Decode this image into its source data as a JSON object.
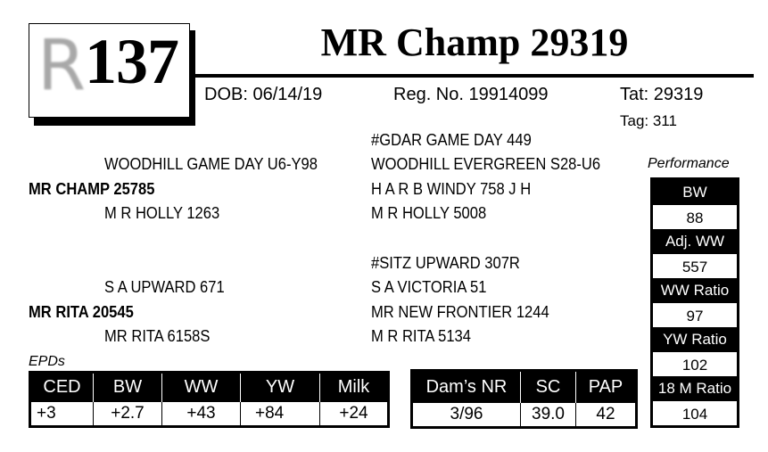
{
  "lot": {
    "logo_letter": "R",
    "number": "137"
  },
  "title": "MR Champ 29319",
  "info": {
    "dob": "DOB: 06/14/19",
    "reg": "Reg. No. 19914099",
    "tat": "Tat: 29319",
    "tag": "Tag: 311"
  },
  "pedigree": {
    "sire": "MR CHAMP 25785",
    "sire_sire": "WOODHILL GAME DAY U6-Y98",
    "sire_dam": "M R HOLLY 1263",
    "sss": "#GDAR GAME DAY 449",
    "ssd": "WOODHILL EVERGREEN S28-U6",
    "sds": "H A R B WINDY 758 J H",
    "sdd": "M R HOLLY 5008",
    "dam": "MR RITA 20545",
    "dam_sire": "S A UPWARD 671",
    "dam_dam": "MR RITA 6158S",
    "dss": "#SITZ UPWARD 307R",
    "dsd": "S A VICTORIA 51",
    "dds": "MR NEW FRONTIER 1244",
    "ddd": "M R RITA 5134"
  },
  "performance": {
    "label": "Performance",
    "items": [
      {
        "label": "BW",
        "value": "88"
      },
      {
        "label": "Adj. WW",
        "value": "557"
      },
      {
        "label": "WW Ratio",
        "value": "97"
      },
      {
        "label": "YW Ratio",
        "value": "102"
      },
      {
        "label": "18 M Ratio",
        "value": "104"
      }
    ]
  },
  "epds": {
    "label": "EPDs",
    "headers": [
      "CED",
      "BW",
      "WW",
      "YW",
      "Milk"
    ],
    "values": [
      "+3",
      "+2.7",
      "+43",
      "+84",
      "+24"
    ]
  },
  "dam_stats": {
    "headers": [
      "Dam’s NR",
      "SC",
      "PAP"
    ],
    "values": [
      "3/96",
      "39.0",
      "42"
    ]
  }
}
